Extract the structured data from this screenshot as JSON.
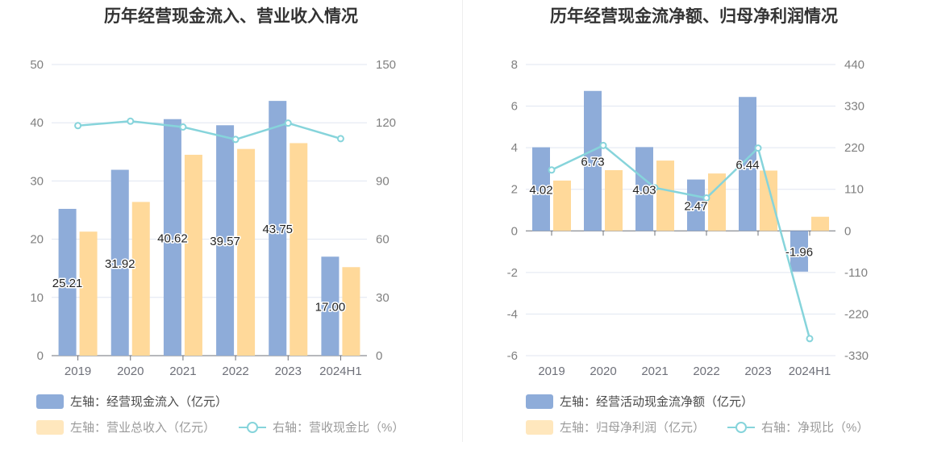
{
  "chart_data": [
    {
      "type": "bar",
      "title": "历年经营现金流入、营业收入情况",
      "categories": [
        "2019",
        "2020",
        "2021",
        "2022",
        "2023",
        "2024H1"
      ],
      "y_left": {
        "min": 0,
        "max": 50,
        "ticks": [
          "0",
          "10",
          "20",
          "30",
          "40",
          "50"
        ]
      },
      "y_right": {
        "min": 0,
        "max": 150,
        "ticks": [
          "0",
          "30",
          "60",
          "90",
          "120",
          "150"
        ]
      },
      "grid": true,
      "legend_position": "bottom-left",
      "series": [
        {
          "name": "左轴：经营现金流入（亿元）",
          "axis": "left",
          "kind": "bar",
          "color": "#8eacd9",
          "values": [
            25.21,
            31.92,
            40.62,
            39.57,
            43.75,
            17.0
          ],
          "labels": [
            "25.21",
            "31.92",
            "40.62",
            "39.57",
            "43.75",
            "17.00"
          ]
        },
        {
          "name": "左轴：营业总收入（亿元）",
          "axis": "left",
          "kind": "bar",
          "color": "#ffd99a",
          "values": [
            21.3,
            26.4,
            34.5,
            35.5,
            36.5,
            15.2
          ]
        },
        {
          "name": "右轴：营收现金比（%）",
          "axis": "right",
          "kind": "line",
          "color": "#86d4db",
          "values": [
            118.5,
            120.8,
            117.8,
            111.4,
            119.8,
            111.8
          ]
        }
      ]
    },
    {
      "type": "bar",
      "title": "历年经营现金流净额、归母净利润情况",
      "categories": [
        "2019",
        "2020",
        "2021",
        "2022",
        "2023",
        "2024H1"
      ],
      "y_left": {
        "min": -6,
        "max": 8,
        "ticks": [
          "-6",
          "-4",
          "-2",
          "0",
          "2",
          "4",
          "6",
          "8"
        ]
      },
      "y_right": {
        "min": -330,
        "max": 440,
        "ticks": [
          "-330",
          "-220",
          "-110",
          "0",
          "110",
          "220",
          "330",
          "440"
        ]
      },
      "grid": true,
      "legend_position": "bottom-left",
      "series": [
        {
          "name": "左轴：经营活动现金流净额（亿元）",
          "axis": "left",
          "kind": "bar",
          "color": "#8eacd9",
          "values": [
            4.02,
            6.73,
            4.03,
            2.47,
            6.44,
            -1.96
          ],
          "labels": [
            "4.02",
            "6.73",
            "4.03",
            "2.47",
            "6.44",
            "-1.96"
          ]
        },
        {
          "name": "左轴：归母净利润（亿元）",
          "axis": "left",
          "kind": "bar",
          "color": "#ffd99a",
          "values": [
            2.42,
            2.92,
            3.38,
            2.76,
            2.9,
            0.68
          ]
        },
        {
          "name": "右轴：净现比（%）",
          "axis": "right",
          "kind": "line",
          "color": "#86d4db",
          "values": [
            161,
            226,
            114,
            87,
            219,
            -285
          ]
        }
      ]
    }
  ]
}
